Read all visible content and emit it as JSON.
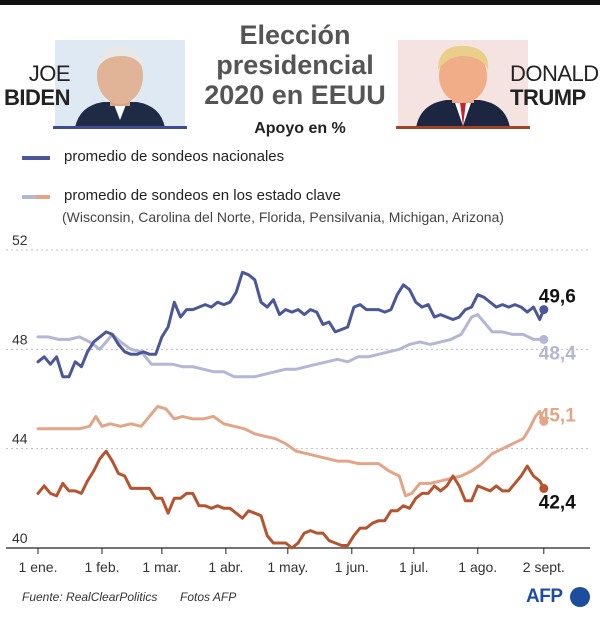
{
  "header": {
    "title_lines": [
      "Elección",
      "presidencial",
      "2020 en EEUU"
    ],
    "subtitle": "Apoyo en %",
    "left_first": "JOE",
    "left_last": "BIDEN",
    "right_first": "DONALD",
    "right_last": "TRUMP"
  },
  "legend": {
    "national": "promedio de sondeos nacionales",
    "states": "promedio de sondeos en los estado clave",
    "states_detail": "(Wisconsin, Carolina del Norte, Florida, Pensilvania, Michigan, Arizona)"
  },
  "footer": {
    "source": "Fuente: RealClearPolitics",
    "photos": "Fotos AFP",
    "logo": "AFP"
  },
  "colors": {
    "biden_national": "#4b5799",
    "biden_states": "#b4b6d6",
    "trump_national": "#b5542f",
    "trump_states": "#e3a585"
  },
  "chart_data": {
    "type": "line",
    "title": "Apoyo en %",
    "xlabel": "",
    "ylabel": "",
    "x_range_days": [
      0,
      248
    ],
    "ylim": [
      40,
      52
    ],
    "y_ticks": [
      40,
      44,
      48,
      52
    ],
    "y_tick_labels": [
      "40",
      "44",
      "48",
      "52"
    ],
    "x_ticks": [
      0,
      31,
      60,
      91,
      121,
      152,
      182,
      213,
      245
    ],
    "x_tick_labels": [
      "1 ene.",
      "1 feb.",
      "1 mar.",
      "1 abr.",
      "1 may.",
      "1 jun.",
      "1 jul.",
      "1 ago.",
      "2 sept."
    ],
    "series": [
      {
        "name": "Biden - promedio de sondeos nacionales",
        "color_key": "biden_national",
        "end_label": "49,6",
        "points": [
          [
            0,
            47.5
          ],
          [
            3,
            47.7
          ],
          [
            6,
            47.4
          ],
          [
            9,
            47.7
          ],
          [
            12,
            46.9
          ],
          [
            15,
            46.9
          ],
          [
            18,
            47.5
          ],
          [
            21,
            47.3
          ],
          [
            24,
            47.9
          ],
          [
            27,
            48.3
          ],
          [
            30,
            48.5
          ],
          [
            33,
            48.7
          ],
          [
            36,
            48.6
          ],
          [
            39,
            48.2
          ],
          [
            42,
            47.9
          ],
          [
            45,
            47.8
          ],
          [
            48,
            47.8
          ],
          [
            51,
            47.9
          ],
          [
            54,
            47.8
          ],
          [
            57,
            47.8
          ],
          [
            60,
            48.5
          ],
          [
            63,
            48.9
          ],
          [
            66,
            49.9
          ],
          [
            69,
            49.3
          ],
          [
            72,
            49.6
          ],
          [
            75,
            49.6
          ],
          [
            78,
            49.7
          ],
          [
            81,
            49.8
          ],
          [
            84,
            49.7
          ],
          [
            87,
            49.9
          ],
          [
            90,
            49.8
          ],
          [
            93,
            49.9
          ],
          [
            96,
            50.3
          ],
          [
            99,
            51.1
          ],
          [
            102,
            51.0
          ],
          [
            105,
            50.8
          ],
          [
            108,
            49.9
          ],
          [
            111,
            49.7
          ],
          [
            114,
            50.0
          ],
          [
            117,
            49.4
          ],
          [
            120,
            49.6
          ],
          [
            123,
            49.5
          ],
          [
            126,
            49.6
          ],
          [
            129,
            49.4
          ],
          [
            132,
            49.6
          ],
          [
            135,
            49.5
          ],
          [
            138,
            49.0
          ],
          [
            141,
            49.1
          ],
          [
            144,
            48.7
          ],
          [
            147,
            48.8
          ],
          [
            150,
            48.9
          ],
          [
            153,
            49.7
          ],
          [
            156,
            49.8
          ],
          [
            159,
            49.6
          ],
          [
            162,
            49.6
          ],
          [
            165,
            49.6
          ],
          [
            168,
            49.5
          ],
          [
            171,
            49.6
          ],
          [
            174,
            50.2
          ],
          [
            177,
            50.6
          ],
          [
            180,
            50.4
          ],
          [
            183,
            49.9
          ],
          [
            186,
            49.7
          ],
          [
            189,
            49.8
          ],
          [
            192,
            49.3
          ],
          [
            195,
            49.4
          ],
          [
            198,
            49.3
          ],
          [
            201,
            49.2
          ],
          [
            204,
            49.3
          ],
          [
            207,
            49.6
          ],
          [
            210,
            49.7
          ],
          [
            213,
            50.2
          ],
          [
            216,
            50.1
          ],
          [
            219,
            49.9
          ],
          [
            222,
            49.7
          ],
          [
            225,
            49.8
          ],
          [
            228,
            49.7
          ],
          [
            231,
            49.8
          ],
          [
            234,
            49.7
          ],
          [
            237,
            49.5
          ],
          [
            240,
            49.7
          ],
          [
            243,
            49.2
          ],
          [
            245,
            49.6
          ]
        ]
      },
      {
        "name": "Biden - promedio de sondeos en los estado clave",
        "color_key": "biden_states",
        "end_label": "48,4",
        "points": [
          [
            0,
            48.5
          ],
          [
            5,
            48.5
          ],
          [
            10,
            48.4
          ],
          [
            15,
            48.4
          ],
          [
            20,
            48.5
          ],
          [
            25,
            48.3
          ],
          [
            30,
            48.0
          ],
          [
            33,
            48.3
          ],
          [
            36,
            48.6
          ],
          [
            40,
            48.3
          ],
          [
            45,
            48.0
          ],
          [
            50,
            47.9
          ],
          [
            55,
            47.4
          ],
          [
            60,
            47.4
          ],
          [
            65,
            47.4
          ],
          [
            70,
            47.3
          ],
          [
            75,
            47.3
          ],
          [
            80,
            47.2
          ],
          [
            85,
            47.1
          ],
          [
            90,
            47.1
          ],
          [
            95,
            46.9
          ],
          [
            100,
            46.9
          ],
          [
            105,
            46.9
          ],
          [
            110,
            47.0
          ],
          [
            115,
            47.1
          ],
          [
            120,
            47.2
          ],
          [
            125,
            47.2
          ],
          [
            130,
            47.3
          ],
          [
            135,
            47.4
          ],
          [
            140,
            47.5
          ],
          [
            145,
            47.6
          ],
          [
            150,
            47.5
          ],
          [
            155,
            47.7
          ],
          [
            160,
            47.7
          ],
          [
            165,
            47.8
          ],
          [
            170,
            47.9
          ],
          [
            175,
            48.0
          ],
          [
            180,
            48.2
          ],
          [
            185,
            48.3
          ],
          [
            190,
            48.2
          ],
          [
            195,
            48.3
          ],
          [
            200,
            48.4
          ],
          [
            205,
            48.6
          ],
          [
            210,
            49.3
          ],
          [
            213,
            49.4
          ],
          [
            216,
            49.1
          ],
          [
            220,
            48.7
          ],
          [
            225,
            48.7
          ],
          [
            230,
            48.6
          ],
          [
            235,
            48.6
          ],
          [
            240,
            48.4
          ],
          [
            245,
            48.4
          ]
        ]
      },
      {
        "name": "Trump - promedio de sondeos nacionales",
        "color_key": "trump_national",
        "end_label": "42,4",
        "points": [
          [
            0,
            42.2
          ],
          [
            3,
            42.5
          ],
          [
            6,
            42.2
          ],
          [
            9,
            42.1
          ],
          [
            12,
            42.6
          ],
          [
            15,
            42.3
          ],
          [
            18,
            42.3
          ],
          [
            21,
            42.2
          ],
          [
            24,
            42.7
          ],
          [
            27,
            43.1
          ],
          [
            30,
            43.6
          ],
          [
            33,
            43.9
          ],
          [
            36,
            43.5
          ],
          [
            39,
            43.0
          ],
          [
            42,
            42.9
          ],
          [
            45,
            42.4
          ],
          [
            48,
            42.4
          ],
          [
            51,
            42.4
          ],
          [
            54,
            42.4
          ],
          [
            57,
            42.0
          ],
          [
            60,
            42.0
          ],
          [
            63,
            41.4
          ],
          [
            66,
            42.0
          ],
          [
            69,
            42.0
          ],
          [
            72,
            42.2
          ],
          [
            75,
            42.2
          ],
          [
            78,
            41.7
          ],
          [
            81,
            41.7
          ],
          [
            84,
            41.6
          ],
          [
            87,
            41.7
          ],
          [
            90,
            41.6
          ],
          [
            93,
            41.6
          ],
          [
            96,
            41.4
          ],
          [
            99,
            41.2
          ],
          [
            102,
            41.5
          ],
          [
            105,
            41.4
          ],
          [
            108,
            41.3
          ],
          [
            111,
            40.5
          ],
          [
            114,
            40.2
          ],
          [
            117,
            40.2
          ],
          [
            120,
            40.2
          ],
          [
            123,
            40.0
          ],
          [
            126,
            40.2
          ],
          [
            129,
            40.6
          ],
          [
            132,
            40.7
          ],
          [
            135,
            40.6
          ],
          [
            138,
            40.6
          ],
          [
            141,
            40.3
          ],
          [
            144,
            40.2
          ],
          [
            147,
            40.1
          ],
          [
            150,
            40.1
          ],
          [
            153,
            40.5
          ],
          [
            156,
            40.8
          ],
          [
            159,
            40.8
          ],
          [
            162,
            41.0
          ],
          [
            165,
            41.1
          ],
          [
            168,
            41.1
          ],
          [
            171,
            41.5
          ],
          [
            174,
            41.5
          ],
          [
            177,
            41.7
          ],
          [
            180,
            41.6
          ],
          [
            183,
            42.0
          ],
          [
            186,
            42.2
          ],
          [
            189,
            42.2
          ],
          [
            192,
            42.5
          ],
          [
            195,
            42.3
          ],
          [
            198,
            42.5
          ],
          [
            201,
            42.9
          ],
          [
            204,
            42.5
          ],
          [
            207,
            41.9
          ],
          [
            210,
            41.9
          ],
          [
            213,
            42.5
          ],
          [
            216,
            42.4
          ],
          [
            219,
            42.3
          ],
          [
            222,
            42.5
          ],
          [
            225,
            42.3
          ],
          [
            228,
            42.3
          ],
          [
            231,
            42.6
          ],
          [
            234,
            42.9
          ],
          [
            237,
            43.3
          ],
          [
            240,
            42.9
          ],
          [
            243,
            42.7
          ],
          [
            245,
            42.4
          ]
        ]
      },
      {
        "name": "Trump - promedio de sondeos en los estado clave",
        "color_key": "trump_states",
        "end_label": "45,1",
        "points": [
          [
            0,
            44.8
          ],
          [
            5,
            44.8
          ],
          [
            10,
            44.8
          ],
          [
            15,
            44.8
          ],
          [
            20,
            44.8
          ],
          [
            25,
            44.9
          ],
          [
            28,
            45.3
          ],
          [
            31,
            44.9
          ],
          [
            35,
            45.0
          ],
          [
            40,
            44.9
          ],
          [
            45,
            45.0
          ],
          [
            50,
            44.9
          ],
          [
            55,
            45.4
          ],
          [
            58,
            45.7
          ],
          [
            62,
            45.6
          ],
          [
            66,
            45.2
          ],
          [
            70,
            45.3
          ],
          [
            75,
            45.2
          ],
          [
            80,
            45.2
          ],
          [
            85,
            45.3
          ],
          [
            90,
            45.0
          ],
          [
            95,
            44.9
          ],
          [
            100,
            44.8
          ],
          [
            105,
            44.6
          ],
          [
            110,
            44.5
          ],
          [
            115,
            44.4
          ],
          [
            120,
            44.2
          ],
          [
            125,
            43.9
          ],
          [
            130,
            43.8
          ],
          [
            135,
            43.7
          ],
          [
            140,
            43.6
          ],
          [
            145,
            43.5
          ],
          [
            150,
            43.5
          ],
          [
            155,
            43.4
          ],
          [
            160,
            43.4
          ],
          [
            165,
            43.4
          ],
          [
            170,
            43.1
          ],
          [
            175,
            42.9
          ],
          [
            178,
            42.1
          ],
          [
            181,
            42.2
          ],
          [
            185,
            42.6
          ],
          [
            190,
            42.6
          ],
          [
            195,
            42.7
          ],
          [
            200,
            42.8
          ],
          [
            205,
            42.9
          ],
          [
            210,
            43.1
          ],
          [
            215,
            43.4
          ],
          [
            220,
            43.8
          ],
          [
            225,
            44.0
          ],
          [
            230,
            44.2
          ],
          [
            235,
            44.4
          ],
          [
            238,
            44.8
          ],
          [
            241,
            45.3
          ],
          [
            243,
            45.5
          ],
          [
            245,
            45.1
          ]
        ]
      }
    ]
  }
}
